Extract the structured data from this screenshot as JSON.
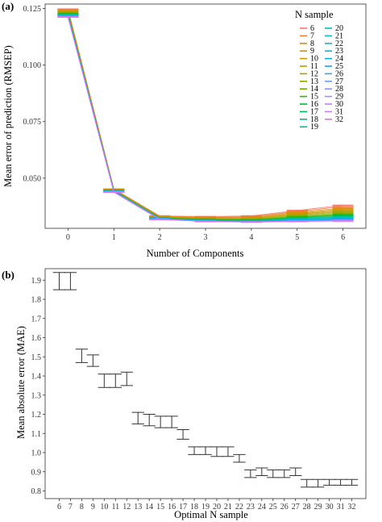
{
  "chart_data": [
    {
      "panel": "(a)",
      "type": "line",
      "xlabel": "Number of Components",
      "ylabel": "Mean error of prediction (RMSEP)",
      "x": [
        0,
        1,
        2,
        3,
        4,
        5,
        6
      ],
      "xlim": [
        -0.5,
        6.5
      ],
      "ylim": [
        0.0278,
        0.127
      ],
      "yticks": [
        "0.050",
        "0.075",
        "0.100",
        "0.125"
      ],
      "ytick_values": [
        0.05,
        0.075,
        0.1,
        0.125
      ],
      "legend_title": "N sample",
      "legend_position": "top-right",
      "series": [
        {
          "name": "6",
          "color": "#f8766d",
          "values": [
            0.1248,
            0.0452,
            0.0333,
            0.033,
            0.0333,
            0.0357,
            0.038
          ]
        },
        {
          "name": "7",
          "color": "#f07f3c",
          "values": [
            0.1245,
            0.0451,
            0.0331,
            0.0328,
            0.033,
            0.0353,
            0.0374
          ]
        },
        {
          "name": "8",
          "color": "#e58700",
          "values": [
            0.1242,
            0.045,
            0.033,
            0.0326,
            0.0327,
            0.0349,
            0.0368
          ]
        },
        {
          "name": "9",
          "color": "#d89000",
          "values": [
            0.124,
            0.0449,
            0.0329,
            0.0324,
            0.0325,
            0.0345,
            0.0363
          ]
        },
        {
          "name": "10",
          "color": "#c99800",
          "values": [
            0.1237,
            0.0448,
            0.0328,
            0.0322,
            0.0323,
            0.0342,
            0.0358
          ]
        },
        {
          "name": "11",
          "color": "#b79f00",
          "values": [
            0.1235,
            0.0447,
            0.0327,
            0.0321,
            0.0321,
            0.0339,
            0.0354
          ]
        },
        {
          "name": "12",
          "color": "#a3a500",
          "values": [
            0.1233,
            0.0447,
            0.0326,
            0.032,
            0.0319,
            0.0336,
            0.035
          ]
        },
        {
          "name": "13",
          "color": "#8bab00",
          "values": [
            0.1231,
            0.0446,
            0.0325,
            0.0319,
            0.0318,
            0.0333,
            0.0346
          ]
        },
        {
          "name": "14",
          "color": "#6bb100",
          "values": [
            0.1229,
            0.0445,
            0.0324,
            0.0318,
            0.0316,
            0.033,
            0.0342
          ]
        },
        {
          "name": "15",
          "color": "#39b600",
          "values": [
            0.1227,
            0.0445,
            0.0324,
            0.0317,
            0.0315,
            0.0328,
            0.0339
          ]
        },
        {
          "name": "16",
          "color": "#00ba38",
          "values": [
            0.1226,
            0.0444,
            0.0323,
            0.0316,
            0.0314,
            0.0326,
            0.0336
          ]
        },
        {
          "name": "17",
          "color": "#00bd5c",
          "values": [
            0.1224,
            0.0444,
            0.0323,
            0.0315,
            0.0313,
            0.0324,
            0.0333
          ]
        },
        {
          "name": "18",
          "color": "#00bf7d",
          "values": [
            0.1223,
            0.0443,
            0.0322,
            0.0314,
            0.0312,
            0.0322,
            0.033
          ]
        },
        {
          "name": "19",
          "color": "#00c19a",
          "values": [
            0.1222,
            0.0443,
            0.0322,
            0.0313,
            0.0311,
            0.032,
            0.0328
          ]
        },
        {
          "name": "20",
          "color": "#00c1b2",
          "values": [
            0.1221,
            0.0442,
            0.0321,
            0.0313,
            0.031,
            0.0319,
            0.0326
          ]
        },
        {
          "name": "21",
          "color": "#00bfc4",
          "values": [
            0.122,
            0.0442,
            0.0321,
            0.0312,
            0.031,
            0.0318,
            0.0324
          ]
        },
        {
          "name": "22",
          "color": "#00bcd8",
          "values": [
            0.1219,
            0.0441,
            0.032,
            0.0312,
            0.0309,
            0.0316,
            0.0322
          ]
        },
        {
          "name": "23",
          "color": "#00b6eb",
          "values": [
            0.1218,
            0.0441,
            0.032,
            0.0311,
            0.0309,
            0.0315,
            0.0321
          ]
        },
        {
          "name": "24",
          "color": "#00b0f6",
          "values": [
            0.1217,
            0.0441,
            0.032,
            0.0311,
            0.0308,
            0.0314,
            0.0319
          ]
        },
        {
          "name": "25",
          "color": "#00a8ff",
          "values": [
            0.1216,
            0.044,
            0.0319,
            0.031,
            0.0308,
            0.0313,
            0.0318
          ]
        },
        {
          "name": "26",
          "color": "#35a2ff",
          "values": [
            0.1216,
            0.044,
            0.0319,
            0.031,
            0.0307,
            0.0312,
            0.0316
          ]
        },
        {
          "name": "27",
          "color": "#619cff",
          "values": [
            0.1215,
            0.044,
            0.0319,
            0.031,
            0.0307,
            0.0311,
            0.0315
          ]
        },
        {
          "name": "28",
          "color": "#8b93ff",
          "values": [
            0.1214,
            0.0439,
            0.0318,
            0.0309,
            0.0307,
            0.0311,
            0.0314
          ]
        },
        {
          "name": "29",
          "color": "#a58aff",
          "values": [
            0.1214,
            0.0439,
            0.0318,
            0.0309,
            0.0306,
            0.031,
            0.0313
          ]
        },
        {
          "name": "30",
          "color": "#b983ff",
          "values": [
            0.1213,
            0.0439,
            0.0318,
            0.0309,
            0.0306,
            0.0309,
            0.0312
          ]
        },
        {
          "name": "31",
          "color": "#cb7bff",
          "values": [
            0.1213,
            0.0439,
            0.0318,
            0.0308,
            0.0306,
            0.0309,
            0.0311
          ]
        },
        {
          "name": "32",
          "color": "#dc71fa",
          "values": [
            0.1212,
            0.0438,
            0.0317,
            0.0308,
            0.0305,
            0.0308,
            0.031
          ]
        }
      ]
    },
    {
      "panel": "(b)",
      "type": "errorbar",
      "xlabel": "Optimal N sample",
      "ylabel": "Mean absolute error (MAE)",
      "ylim": [
        0.76,
        1.96
      ],
      "yticks": [
        "0.8",
        "0.9",
        "1.0",
        "1.1",
        "1.2",
        "1.3",
        "1.4",
        "1.5",
        "1.6",
        "1.7",
        "1.8",
        "1.9"
      ],
      "ytick_values": [
        0.8,
        0.9,
        1.0,
        1.1,
        1.2,
        1.3,
        1.4,
        1.5,
        1.6,
        1.7,
        1.8,
        1.9
      ],
      "color": "#333333",
      "categories": [
        "6",
        "7",
        "8",
        "9",
        "10",
        "11",
        "12",
        "13",
        "14",
        "15",
        "16",
        "17",
        "18",
        "19",
        "20",
        "21",
        "22",
        "23",
        "24",
        "25",
        "26",
        "27",
        "28",
        "29",
        "30",
        "31",
        "32"
      ],
      "lower": [
        1.85,
        1.85,
        1.47,
        1.45,
        1.34,
        1.34,
        1.35,
        1.15,
        1.14,
        1.13,
        1.13,
        1.07,
        0.99,
        0.99,
        0.98,
        0.98,
        0.95,
        0.87,
        0.88,
        0.87,
        0.87,
        0.88,
        0.82,
        0.82,
        0.83,
        0.83,
        0.83
      ],
      "upper": [
        1.94,
        1.94,
        1.54,
        1.51,
        1.41,
        1.41,
        1.42,
        1.21,
        1.2,
        1.19,
        1.19,
        1.12,
        1.03,
        1.03,
        1.03,
        1.03,
        0.99,
        0.91,
        0.92,
        0.91,
        0.91,
        0.92,
        0.86,
        0.86,
        0.86,
        0.86,
        0.86
      ]
    }
  ]
}
